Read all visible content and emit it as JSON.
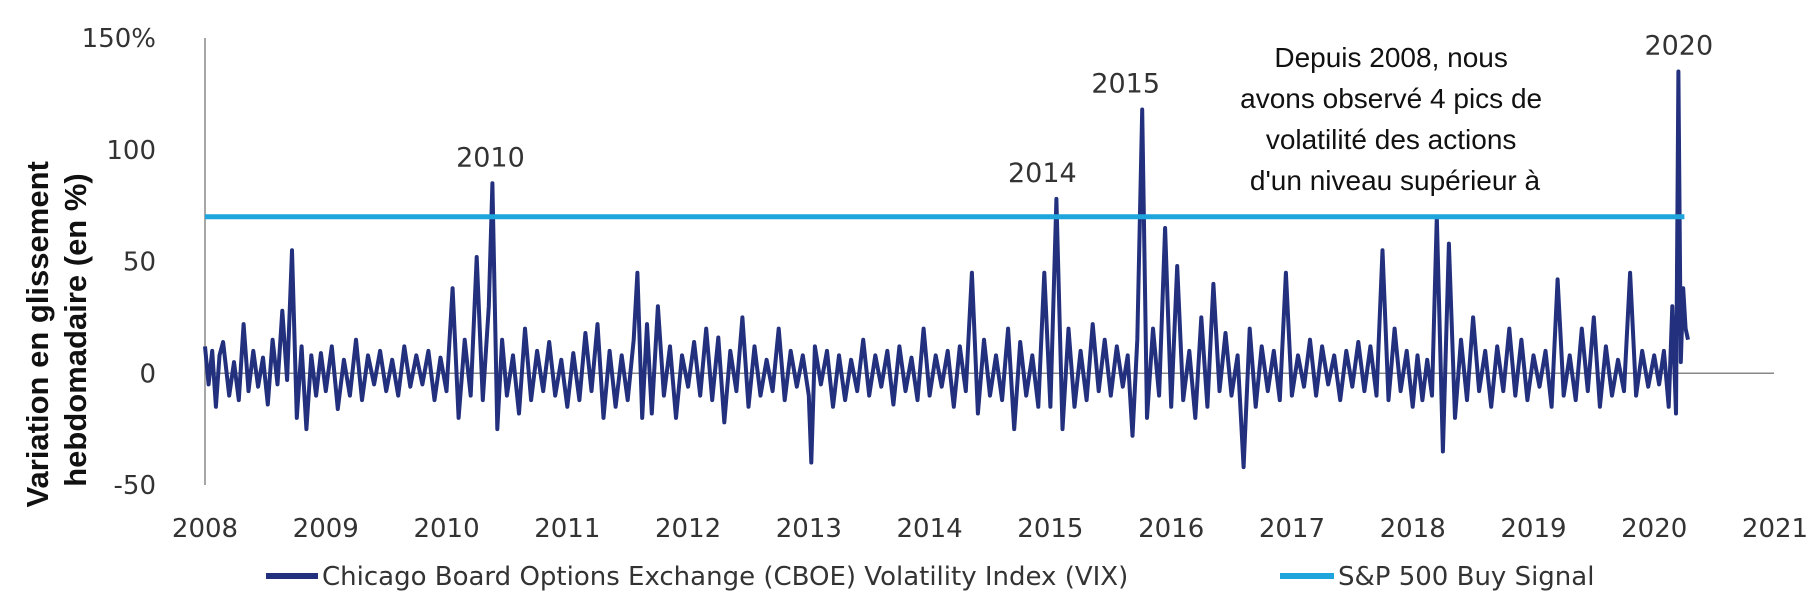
{
  "chart_data": {
    "type": "line",
    "ylabel": [
      "Variation en glissement",
      "hebdomadaire (en %)"
    ],
    "xlim": [
      2008,
      2021
    ],
    "ylim": [
      -50,
      150
    ],
    "yticks": [
      {
        "value": 150,
        "label": "150%"
      },
      {
        "value": 100,
        "label": "100"
      },
      {
        "value": 50,
        "label": "50"
      },
      {
        "value": 0,
        "label": "0"
      },
      {
        "value": -50,
        "label": "-50"
      }
    ],
    "xticks": [
      "2008",
      "2009",
      "2010",
      "2011",
      "2012",
      "2013",
      "2014",
      "2015",
      "2016",
      "2017",
      "2018",
      "2019",
      "2020",
      "2021"
    ],
    "series": [
      {
        "name": "Chicago Board Options Exchange (CBOE) Volatility Index (VIX)",
        "color": "#22307d",
        "x": [
          2008.0,
          2008.03,
          2008.06,
          2008.09,
          2008.12,
          2008.15,
          2008.2,
          2008.24,
          2008.28,
          2008.32,
          2008.36,
          2008.4,
          2008.44,
          2008.48,
          2008.52,
          2008.56,
          2008.6,
          2008.64,
          2008.68,
          2008.72,
          2008.76,
          2008.8,
          2008.84,
          2008.88,
          2008.92,
          2008.96,
          2009.0,
          2009.05,
          2009.1,
          2009.15,
          2009.2,
          2009.25,
          2009.3,
          2009.35,
          2009.4,
          2009.45,
          2009.5,
          2009.55,
          2009.6,
          2009.65,
          2009.7,
          2009.75,
          2009.8,
          2009.85,
          2009.9,
          2009.95,
          2010.0,
          2010.05,
          2010.1,
          2010.15,
          2010.2,
          2010.25,
          2010.3,
          2010.35,
          2010.38,
          2010.42,
          2010.46,
          2010.5,
          2010.55,
          2010.6,
          2010.65,
          2010.7,
          2010.75,
          2010.8,
          2010.85,
          2010.9,
          2010.95,
          2011.0,
          2011.05,
          2011.1,
          2011.15,
          2011.2,
          2011.25,
          2011.3,
          2011.35,
          2011.4,
          2011.45,
          2011.5,
          2011.55,
          2011.58,
          2011.62,
          2011.66,
          2011.7,
          2011.75,
          2011.8,
          2011.85,
          2011.9,
          2011.95,
          2012.0,
          2012.05,
          2012.1,
          2012.15,
          2012.2,
          2012.25,
          2012.3,
          2012.35,
          2012.4,
          2012.45,
          2012.5,
          2012.55,
          2012.6,
          2012.65,
          2012.7,
          2012.75,
          2012.8,
          2012.85,
          2012.9,
          2012.95,
          2013.0,
          2013.02,
          2013.05,
          2013.1,
          2013.15,
          2013.2,
          2013.25,
          2013.3,
          2013.35,
          2013.4,
          2013.45,
          2013.5,
          2013.55,
          2013.6,
          2013.65,
          2013.7,
          2013.75,
          2013.8,
          2013.85,
          2013.9,
          2013.95,
          2014.0,
          2014.05,
          2014.1,
          2014.15,
          2014.2,
          2014.25,
          2014.3,
          2014.35,
          2014.4,
          2014.45,
          2014.5,
          2014.55,
          2014.6,
          2014.65,
          2014.7,
          2014.75,
          2014.8,
          2014.85,
          2014.9,
          2014.95,
          2015.0,
          2015.05,
          2015.1,
          2015.15,
          2015.2,
          2015.25,
          2015.3,
          2015.35,
          2015.4,
          2015.45,
          2015.5,
          2015.55,
          2015.6,
          2015.64,
          2015.68,
          2015.72,
          2015.76,
          2015.8,
          2015.85,
          2015.9,
          2015.95,
          2016.0,
          2016.05,
          2016.1,
          2016.15,
          2016.2,
          2016.25,
          2016.3,
          2016.35,
          2016.4,
          2016.45,
          2016.5,
          2016.55,
          2016.6,
          2016.65,
          2016.7,
          2016.75,
          2016.8,
          2016.85,
          2016.9,
          2016.95,
          2017.0,
          2017.05,
          2017.1,
          2017.15,
          2017.2,
          2017.25,
          2017.3,
          2017.35,
          2017.4,
          2017.45,
          2017.5,
          2017.55,
          2017.6,
          2017.65,
          2017.7,
          2017.75,
          2017.8,
          2017.85,
          2017.9,
          2017.95,
          2018.0,
          2018.04,
          2018.08,
          2018.12,
          2018.16,
          2018.2,
          2018.25,
          2018.3,
          2018.35,
          2018.4,
          2018.45,
          2018.5,
          2018.55,
          2018.6,
          2018.65,
          2018.7,
          2018.75,
          2018.8,
          2018.85,
          2018.9,
          2018.95,
          2019.0,
          2019.05,
          2019.1,
          2019.15,
          2019.2,
          2019.25,
          2019.3,
          2019.35,
          2019.4,
          2019.45,
          2019.5,
          2019.55,
          2019.6,
          2019.65,
          2019.7,
          2019.75,
          2019.8,
          2019.85,
          2019.9,
          2019.95,
          2020.0,
          2020.04,
          2020.08,
          2020.12,
          2020.15,
          2020.18,
          2020.2,
          2020.22,
          2020.24,
          2020.26,
          2020.28
        ],
        "y": [
          12,
          -5,
          10,
          -15,
          8,
          14,
          -10,
          5,
          -12,
          22,
          -8,
          10,
          -6,
          7,
          -14,
          15,
          -5,
          28,
          -3,
          55,
          -20,
          12,
          -25,
          8,
          -10,
          9,
          -8,
          12,
          -16,
          6,
          -10,
          15,
          -12,
          8,
          -5,
          10,
          -8,
          6,
          -10,
          12,
          -6,
          8,
          -5,
          10,
          -12,
          7,
          -8,
          38,
          -20,
          15,
          -10,
          52,
          -12,
          30,
          85,
          -25,
          15,
          -10,
          8,
          -18,
          20,
          -12,
          10,
          -8,
          14,
          -10,
          6,
          -15,
          9,
          -12,
          18,
          -8,
          22,
          -20,
          10,
          -15,
          8,
          -12,
          15,
          45,
          -20,
          22,
          -18,
          30,
          -10,
          12,
          -20,
          8,
          -6,
          14,
          -10,
          20,
          -12,
          16,
          -22,
          10,
          -8,
          25,
          -15,
          12,
          -10,
          6,
          -8,
          20,
          -12,
          10,
          -6,
          8,
          -10,
          -40,
          12,
          -5,
          10,
          -15,
          8,
          -12,
          6,
          -8,
          15,
          -10,
          8,
          -6,
          10,
          -14,
          12,
          -8,
          7,
          -12,
          20,
          -10,
          8,
          -6,
          10,
          -15,
          12,
          -8,
          45,
          -18,
          15,
          -10,
          8,
          -12,
          20,
          -25,
          14,
          -10,
          8,
          -15,
          45,
          -15,
          78,
          -25,
          20,
          -15,
          10,
          -12,
          22,
          -8,
          15,
          -10,
          12,
          -6,
          8,
          -28,
          15,
          118,
          -20,
          20,
          -10,
          65,
          -15,
          48,
          -12,
          10,
          -20,
          25,
          -15,
          40,
          -8,
          18,
          -10,
          8,
          -42,
          20,
          -15,
          12,
          -8,
          10,
          -12,
          45,
          -10,
          8,
          -6,
          15,
          -10,
          12,
          -5,
          8,
          -12,
          10,
          -6,
          14,
          -8,
          12,
          -10,
          55,
          -12,
          20,
          -8,
          10,
          -15,
          8,
          -12,
          6,
          -10,
          70,
          -35,
          58,
          -20,
          15,
          -12,
          25,
          -8,
          10,
          -15,
          12,
          -8,
          20,
          -10,
          15,
          -12,
          8,
          -6,
          10,
          -15,
          42,
          -10,
          8,
          -12,
          20,
          -8,
          25,
          -15,
          12,
          -10,
          6,
          -8,
          45,
          -10,
          10,
          -6,
          8,
          -5,
          10,
          -15,
          30,
          -18,
          135,
          5,
          38,
          20,
          15
        ]
      },
      {
        "name": "S&P 500 Buy Signal",
        "color": "#1ea5dc",
        "x": [
          2008,
          2020.25
        ],
        "y": [
          70,
          70
        ]
      }
    ],
    "peak_labels": [
      {
        "label": "2010",
        "x": 2010.38,
        "y": 85
      },
      {
        "label": "2014",
        "x": 2014.95,
        "y": 78
      },
      {
        "label": "2015",
        "x": 2015.64,
        "y": 118
      },
      {
        "label": "2020",
        "x": 2020.22,
        "y": 135
      }
    ],
    "annotation": [
      "Depuis 2008, nous",
      "avons observé 4 pics de",
      "volatilité des actions",
      "d'un niveau supérieur à"
    ],
    "legend": {
      "position": "bottom",
      "items": [
        "Chicago Board Options Exchange (CBOE) Volatility Index (VIX)",
        "S&P 500 Buy Signal"
      ]
    },
    "grid": false
  }
}
